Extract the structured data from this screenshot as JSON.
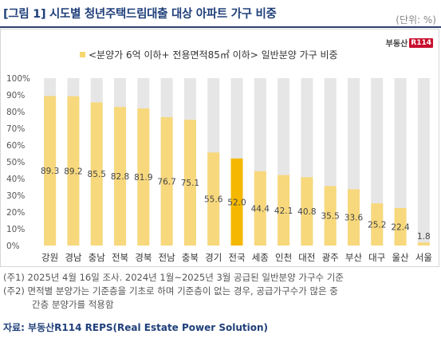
{
  "header": {
    "title": "[그림 1] 시도별 청년주택드림대출 대상 아파트 가구 비중",
    "unit": "(단위: %)"
  },
  "logo": {
    "text": "부동산",
    "mark": "R114"
  },
  "colors": {
    "highlight": "#f5b800",
    "bar": "#f7d87c",
    "background_bar": "#e6e6e6",
    "title": "#1f3f7a"
  },
  "chart_data": {
    "type": "bar",
    "title": "",
    "legend": "<분양가 6억 이하+ 전용면적85㎡ 이하> 일반분양 가구 비중",
    "categories": [
      "강원",
      "경남",
      "충남",
      "전북",
      "경북",
      "전남",
      "충북",
      "경기",
      "전국",
      "세종",
      "인천",
      "대전",
      "광주",
      "부산",
      "대구",
      "울산",
      "서울"
    ],
    "values": [
      89.3,
      89.2,
      85.5,
      82.8,
      81.9,
      76.7,
      75.1,
      55.6,
      52.0,
      44.4,
      42.1,
      40.8,
      35.5,
      33.6,
      25.2,
      22.4,
      1.8
    ],
    "value_labels": [
      "89.3",
      "89.2",
      "85.5",
      "82.8",
      "81.9",
      "76.7",
      "75.1",
      "55.6",
      "52.0",
      "44.4",
      "42.1",
      "40.8",
      "35.5",
      "33.6",
      "25.2",
      "22.4",
      "1.8"
    ],
    "highlight_category": "전국",
    "background_value": 100,
    "ylim": [
      0,
      100
    ],
    "yticks": [
      "0%",
      "10%",
      "20%",
      "30%",
      "40%",
      "50%",
      "60%",
      "70%",
      "80%",
      "90%",
      "100%"
    ],
    "xlabel": "",
    "ylabel": "",
    "grid": false
  },
  "notes": [
    "(주1) 2025년 4월 16일 조사. 2024년 1월~2025년 3월 공급된 일반분양 가구수 기준",
    "(주2) 면적별 분양가는 기준층을 기초로 하며 기준층이 없는 경우, 공급가구수가 많은 중",
    "간층 분양가를 적용함"
  ],
  "source": "자료: 부동산R114 REPS(Real Estate Power Solution)"
}
